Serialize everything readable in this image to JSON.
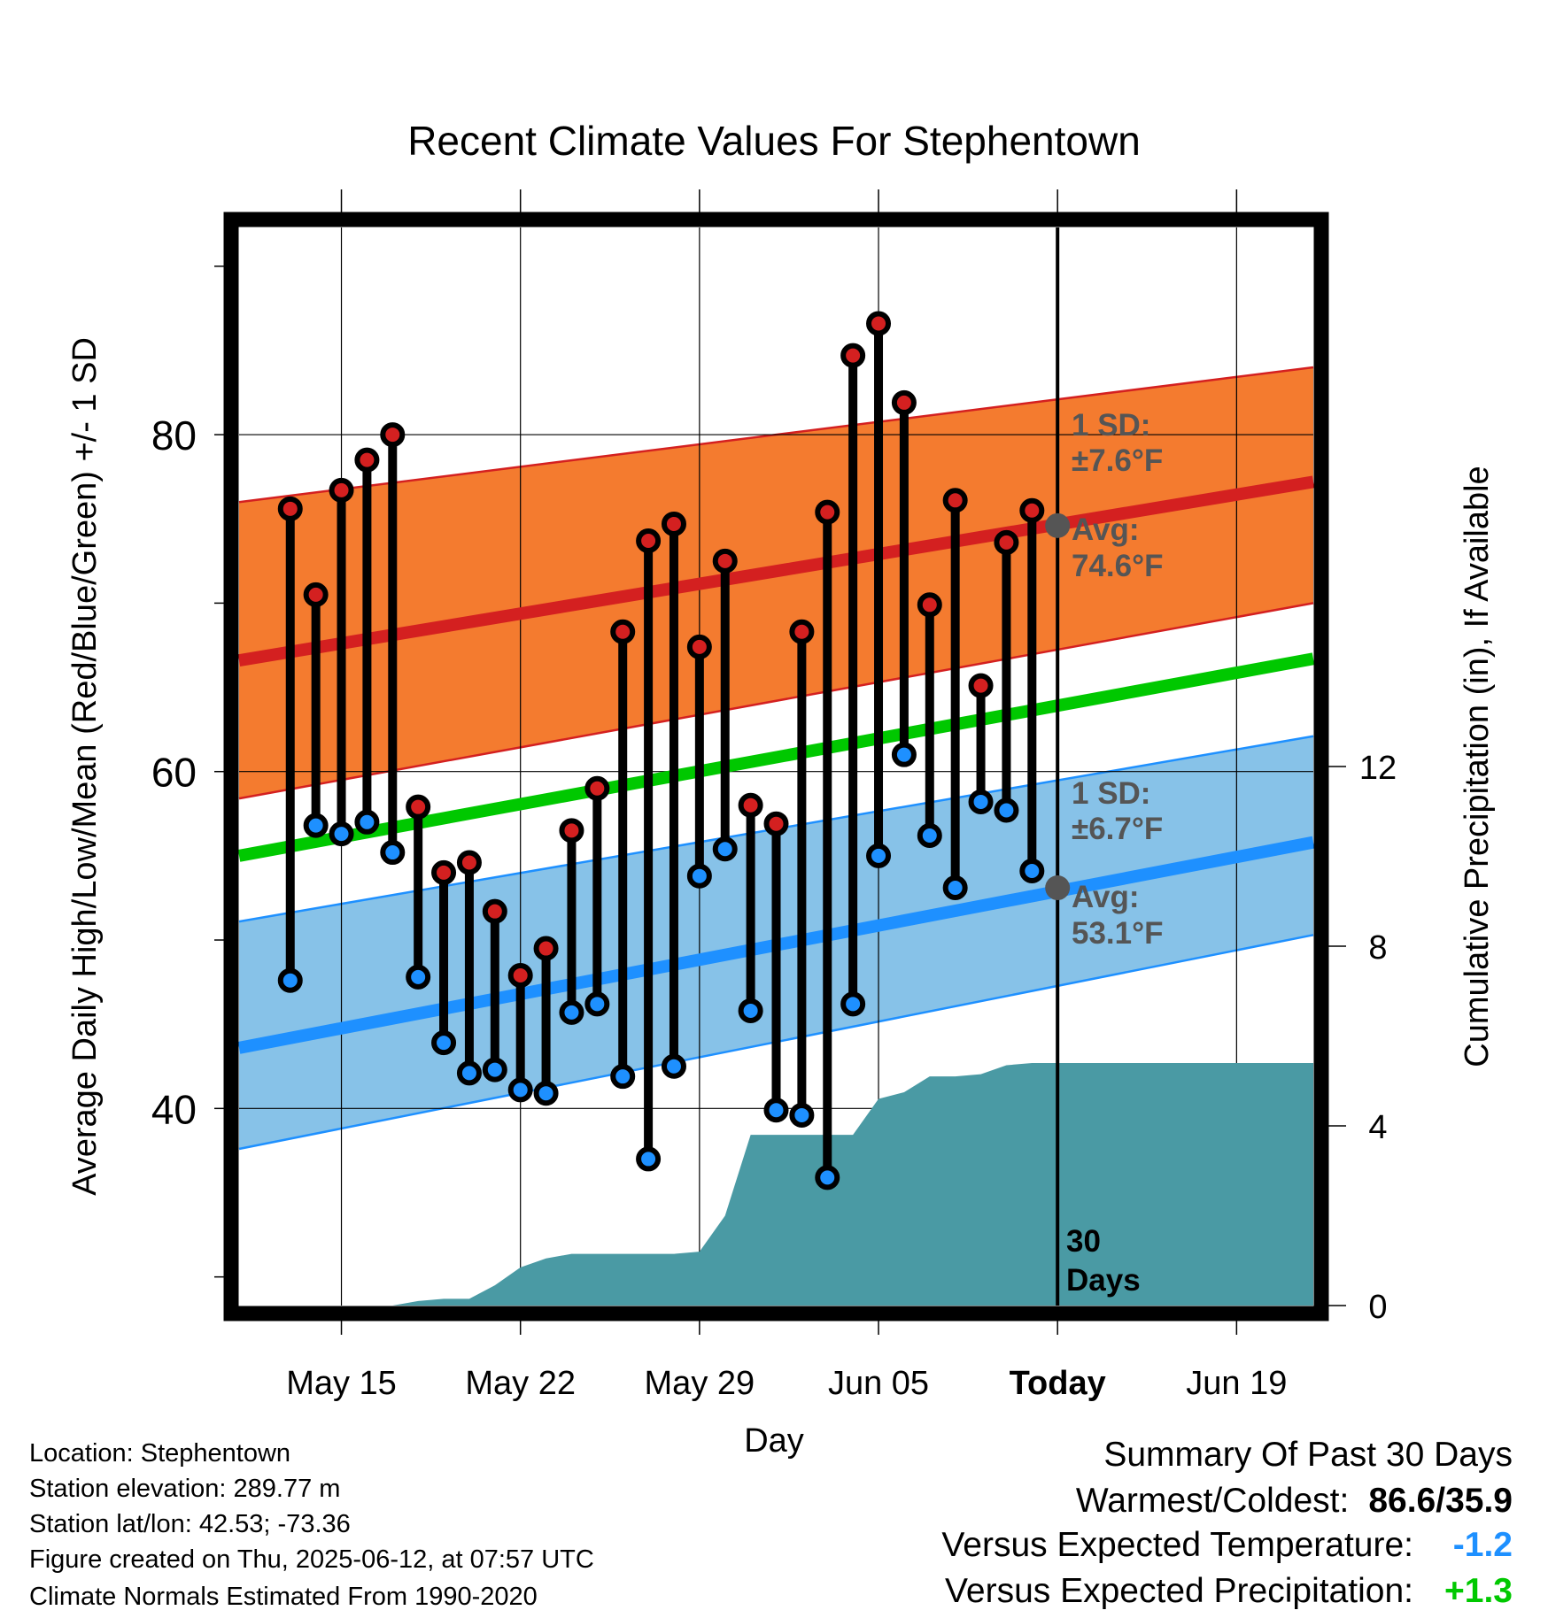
{
  "footer": {
    "location": "Location: Stephentown",
    "elevation": "Station elevation: 289.77 m",
    "latlon": "Station lat/lon: 42.53; -73.36",
    "created": "Figure created on Thu, 2025-06-12, at 07:57 UTC",
    "normals": "Climate Normals Estimated From 1990-2020"
  },
  "summary": {
    "title": "Summary Of Past 30 Days",
    "warmest_coldest_label": "Warmest/Coldest:",
    "warmest_coldest_value": "86.6/35.9",
    "temp_label": "Versus Expected Temperature:",
    "temp_value": "-1.2",
    "precip_label": "Versus Expected Precipitation:",
    "precip_value": "+1.3",
    "temp_color": "#1e90ff",
    "precip_color": "#00c800"
  },
  "chart_data": {
    "type": "line",
    "title": "Recent Climate Values For Stephentown",
    "xlabel": "Day",
    "ylabel": "Average Daily High/Low/Mean (Red/Blue/Green) +/- 1 SD",
    "y2label": "Cumulative Precipitation (in), If Available",
    "xlim": [
      "2025-05-11",
      "2025-06-22"
    ],
    "ylim": [
      28.3,
      92.3
    ],
    "y2lim": [
      0,
      24
    ],
    "x_ticks": [
      {
        "date": "2025-05-15",
        "label": "May 15"
      },
      {
        "date": "2025-05-22",
        "label": "May 22"
      },
      {
        "date": "2025-05-29",
        "label": "May 29"
      },
      {
        "date": "2025-06-05",
        "label": "Jun 05"
      },
      {
        "date": "2025-06-12",
        "label": "Today"
      },
      {
        "date": "2025-06-19",
        "label": "Jun 19"
      }
    ],
    "y_ticks": [
      40,
      60,
      80
    ],
    "y_minor_ticks": [
      30,
      50,
      70,
      90
    ],
    "y2_ticks": [
      0,
      4,
      8,
      12
    ],
    "today": "2025-06-12",
    "window_label": "30\nDays",
    "normals": {
      "dates": [
        "2025-05-11",
        "2025-06-22"
      ],
      "high_avg": [
        66.6,
        77.2
      ],
      "high_upper": [
        76.0,
        84.0
      ],
      "high_lower": [
        58.4,
        70.0
      ],
      "high_sd_label": "1 SD:\n±7.6°F",
      "high_avg_label": "Avg:\n74.6°F",
      "today_high_avg": 74.6,
      "low_avg": [
        43.6,
        55.8
      ],
      "low_upper": [
        51.1,
        62.1
      ],
      "low_lower": [
        37.6,
        50.3
      ],
      "low_sd_label": "1 SD:\n±6.7°F",
      "low_avg_label": "Avg:\n53.1°F",
      "today_low_avg": 53.1,
      "mean_avg": [
        55.0,
        66.7
      ]
    },
    "daily": {
      "dates": [
        "2025-05-13",
        "2025-05-14",
        "2025-05-15",
        "2025-05-16",
        "2025-05-17",
        "2025-05-18",
        "2025-05-19",
        "2025-05-20",
        "2025-05-21",
        "2025-05-22",
        "2025-05-23",
        "2025-05-24",
        "2025-05-25",
        "2025-05-26",
        "2025-05-27",
        "2025-05-28",
        "2025-05-29",
        "2025-05-30",
        "2025-05-31",
        "2025-06-01",
        "2025-06-02",
        "2025-06-03",
        "2025-06-04",
        "2025-06-05",
        "2025-06-06",
        "2025-06-07",
        "2025-06-08",
        "2025-06-09",
        "2025-06-10",
        "2025-06-11"
      ],
      "high": [
        75.6,
        70.5,
        76.7,
        78.5,
        80.0,
        57.9,
        54.0,
        54.6,
        51.7,
        47.9,
        49.5,
        56.5,
        59.0,
        68.3,
        73.7,
        74.7,
        67.4,
        72.5,
        58.0,
        56.9,
        68.3,
        75.4,
        84.7,
        86.6,
        81.9,
        69.9,
        76.1,
        65.1,
        73.6,
        75.5
      ],
      "low": [
        47.6,
        56.8,
        56.3,
        57.0,
        55.2,
        47.8,
        43.9,
        42.1,
        42.3,
        41.1,
        40.9,
        45.7,
        46.2,
        41.9,
        37.0,
        42.5,
        53.8,
        55.4,
        45.8,
        39.9,
        39.6,
        35.9,
        46.2,
        55.0,
        61.0,
        56.2,
        53.1,
        58.2,
        57.7,
        54.1
      ]
    },
    "precip": {
      "dates": [
        "2025-05-11",
        "2025-05-17",
        "2025-05-18",
        "2025-05-19",
        "2025-05-20",
        "2025-05-21",
        "2025-05-22",
        "2025-05-23",
        "2025-05-24",
        "2025-05-25",
        "2025-05-26",
        "2025-05-27",
        "2025-05-28",
        "2025-05-29",
        "2025-05-30",
        "2025-05-31",
        "2025-06-01",
        "2025-06-02",
        "2025-06-03",
        "2025-06-04",
        "2025-06-05",
        "2025-06-06",
        "2025-06-07",
        "2025-06-08",
        "2025-06-09",
        "2025-06-10",
        "2025-06-11",
        "2025-06-12",
        "2025-06-22"
      ],
      "cumulative": [
        0,
        0,
        0.1,
        0.15,
        0.15,
        0.45,
        0.85,
        1.05,
        1.15,
        1.15,
        1.15,
        1.15,
        1.15,
        1.2,
        2.0,
        3.8,
        3.8,
        3.8,
        3.8,
        3.8,
        4.6,
        4.75,
        5.1,
        5.1,
        5.15,
        5.35,
        5.4,
        5.4,
        5.4
      ]
    }
  }
}
